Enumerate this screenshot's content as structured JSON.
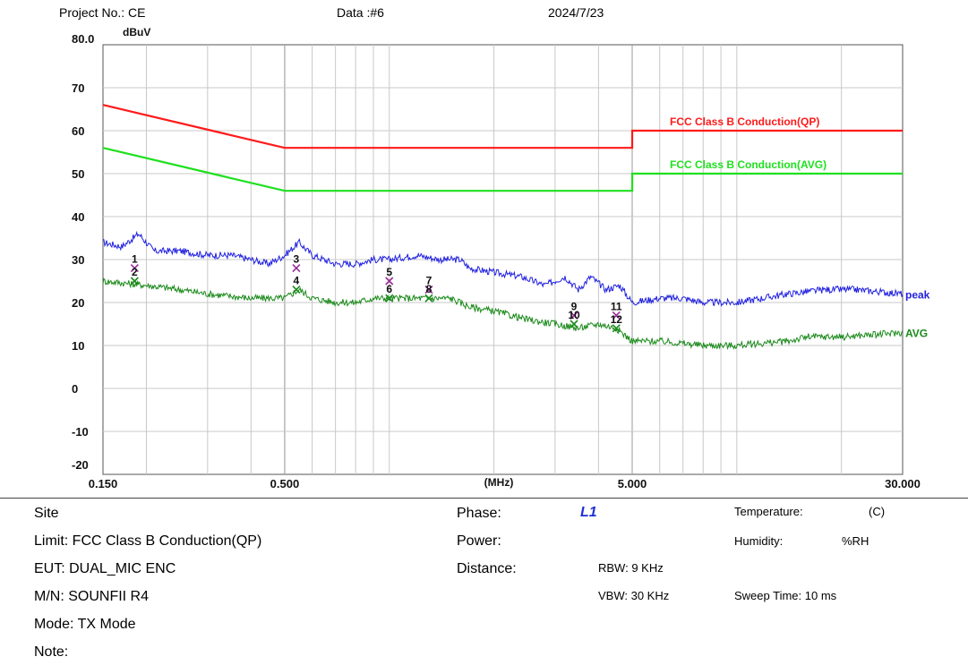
{
  "header": {
    "project_label": "Project No.: CE",
    "data_label": "Data :#6",
    "date": "2024/7/23"
  },
  "chart_data": {
    "type": "line",
    "x_scale": "log",
    "xlim": [
      0.15,
      30.0
    ],
    "ylim": [
      -20,
      80
    ],
    "y_unit_label": "dBuV",
    "x_unit_label": "(MHz)",
    "x_tick_labels": [
      {
        "x": 0.15,
        "label": "0.150"
      },
      {
        "x": 0.5,
        "label": "0.500"
      },
      {
        "x": 5.0,
        "label": "5.000"
      },
      {
        "x": 30.0,
        "label": "30.000"
      }
    ],
    "y_ticks": [
      {
        "y": 80,
        "label": "80.0"
      },
      {
        "y": 70,
        "label": "70"
      },
      {
        "y": 60,
        "label": "60"
      },
      {
        "y": 50,
        "label": "50"
      },
      {
        "y": 40,
        "label": "40"
      },
      {
        "y": 30,
        "label": "30"
      },
      {
        "y": 20,
        "label": "20"
      },
      {
        "y": 10,
        "label": "10"
      },
      {
        "y": 0,
        "label": "0"
      },
      {
        "y": -10,
        "label": "-10"
      },
      {
        "y": -20,
        "label": "-20"
      }
    ],
    "grid": true,
    "limits": [
      {
        "name": "FCC Class B Conduction(QP)",
        "color": "#ff1a1a",
        "points": [
          [
            0.15,
            66
          ],
          [
            0.5,
            56
          ],
          [
            5.0,
            56
          ],
          [
            5.0,
            60
          ],
          [
            30.0,
            60
          ]
        ]
      },
      {
        "name": "FCC Class B Conduction(AVG)",
        "color": "#1fe01f",
        "points": [
          [
            0.15,
            56
          ],
          [
            0.5,
            46
          ],
          [
            5.0,
            46
          ],
          [
            5.0,
            50
          ],
          [
            30.0,
            50
          ]
        ]
      }
    ],
    "series": [
      {
        "name": "peak",
        "color": "#2020e0",
        "points": [
          [
            0.15,
            34
          ],
          [
            0.17,
            33
          ],
          [
            0.19,
            36
          ],
          [
            0.21,
            32
          ],
          [
            0.25,
            32
          ],
          [
            0.3,
            31
          ],
          [
            0.35,
            31
          ],
          [
            0.4,
            30
          ],
          [
            0.45,
            29
          ],
          [
            0.5,
            31
          ],
          [
            0.55,
            34
          ],
          [
            0.6,
            31
          ],
          [
            0.7,
            29
          ],
          [
            0.8,
            29
          ],
          [
            0.9,
            30
          ],
          [
            1.0,
            30
          ],
          [
            1.2,
            31
          ],
          [
            1.4,
            30
          ],
          [
            1.6,
            30
          ],
          [
            1.7,
            28
          ],
          [
            2.0,
            27
          ],
          [
            2.4,
            26
          ],
          [
            2.8,
            24
          ],
          [
            3.2,
            26
          ],
          [
            3.5,
            23
          ],
          [
            3.8,
            26
          ],
          [
            4.2,
            23
          ],
          [
            4.6,
            24
          ],
          [
            5.0,
            20
          ],
          [
            6.0,
            21
          ],
          [
            7.0,
            21
          ],
          [
            8.0,
            20
          ],
          [
            10.0,
            20
          ],
          [
            14.0,
            22
          ],
          [
            18.0,
            23
          ],
          [
            22.0,
            23
          ],
          [
            30.0,
            22
          ]
        ]
      },
      {
        "name": "AVG",
        "color": "#1a8a1a",
        "points": [
          [
            0.15,
            25
          ],
          [
            0.2,
            24
          ],
          [
            0.25,
            23
          ],
          [
            0.3,
            22
          ],
          [
            0.4,
            21
          ],
          [
            0.5,
            21
          ],
          [
            0.55,
            23
          ],
          [
            0.6,
            21
          ],
          [
            0.7,
            20
          ],
          [
            0.8,
            20
          ],
          [
            0.9,
            21
          ],
          [
            1.0,
            21
          ],
          [
            1.2,
            21
          ],
          [
            1.5,
            21
          ],
          [
            1.7,
            19
          ],
          [
            2.0,
            18
          ],
          [
            2.5,
            16
          ],
          [
            3.0,
            15
          ],
          [
            3.5,
            14
          ],
          [
            4.0,
            15
          ],
          [
            4.5,
            14
          ],
          [
            5.0,
            11
          ],
          [
            6.0,
            11
          ],
          [
            8.0,
            10
          ],
          [
            10.0,
            10
          ],
          [
            14.0,
            11
          ],
          [
            16.0,
            12
          ],
          [
            20.0,
            12
          ],
          [
            30.0,
            13
          ]
        ]
      }
    ],
    "markers": [
      {
        "label": "1",
        "x": 0.185,
        "y": 28,
        "color": "#9a2a9a"
      },
      {
        "label": "2",
        "x": 0.185,
        "y": 25,
        "color": "#1a8a1a"
      },
      {
        "label": "3",
        "x": 0.54,
        "y": 28,
        "color": "#9a2a9a"
      },
      {
        "label": "4",
        "x": 0.54,
        "y": 23,
        "color": "#1a8a1a"
      },
      {
        "label": "5",
        "x": 1.0,
        "y": 25,
        "color": "#9a2a9a"
      },
      {
        "label": "6",
        "x": 1.0,
        "y": 21,
        "color": "#1a8a1a"
      },
      {
        "label": "7",
        "x": 1.3,
        "y": 23,
        "color": "#9a2a9a"
      },
      {
        "label": "8",
        "x": 1.3,
        "y": 21,
        "color": "#1a8a1a"
      },
      {
        "label": "9",
        "x": 3.4,
        "y": 17,
        "color": "#9a2a9a"
      },
      {
        "label": "10",
        "x": 3.4,
        "y": 15,
        "color": "#1a8a1a"
      },
      {
        "label": "11",
        "x": 4.5,
        "y": 17,
        "color": "#9a2a9a"
      },
      {
        "label": "12",
        "x": 4.5,
        "y": 14,
        "color": "#1a8a1a"
      }
    ]
  },
  "info": {
    "site": "Site",
    "limit": "Limit: FCC Class B Conduction(QP)",
    "eut": "EUT: DUAL_MIC ENC",
    "mn": "M/N: SOUNFII R4",
    "mode": "Mode: TX Mode",
    "note": "Note:",
    "phase_label": "Phase:",
    "phase_value": "L1",
    "power_label": "Power:",
    "distance_label": "Distance:",
    "rbw": "RBW: 9 KHz",
    "vbw": "VBW: 30 KHz",
    "temperature_label": "Temperature:",
    "temperature_unit": "(C)",
    "humidity_label": "Humidity:",
    "humidity_unit": "%RH",
    "sweep_time": "Sweep Time: 10 ms"
  }
}
